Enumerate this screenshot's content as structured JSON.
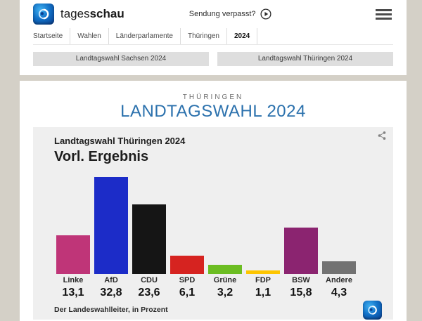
{
  "header": {
    "brand": {
      "word_regular": "tages",
      "word_bold": "schau"
    },
    "sendung_verpasst": "Sendung verpasst?",
    "breadcrumb": [
      "Startseite",
      "Wahlen",
      "Länderparlamente",
      "Thüringen",
      "2024"
    ],
    "tabs": [
      {
        "label": "Landtagswahl Sachsen 2024"
      },
      {
        "label": "Landtagswahl Thüringen 2024"
      }
    ]
  },
  "page": {
    "kicker": "THÜRINGEN",
    "title": "LANDTAGSWAHL 2024"
  },
  "chart_card": {
    "title": "Landtagswahl Thüringen 2024",
    "subtitle": "Vorl. Ergebnis",
    "source": "Der Landeswahlleiter, in Prozent"
  },
  "chart_data": {
    "type": "bar",
    "title": "Landtagswahl Thüringen 2024 — Vorl. Ergebnis",
    "categories": [
      "Linke",
      "AfD",
      "CDU",
      "SPD",
      "Grüne",
      "FDP",
      "BSW",
      "Andere"
    ],
    "values": [
      13.1,
      32.8,
      23.6,
      6.1,
      3.2,
      1.1,
      15.8,
      4.3
    ],
    "value_labels": [
      "13,1",
      "32,8",
      "23,6",
      "6,1",
      "3,2",
      "1,1",
      "15,8",
      "4,3"
    ],
    "colors": [
      "#bf3578",
      "#1c2cc8",
      "#151515",
      "#d62320",
      "#6cbd22",
      "#fdc500",
      "#8b2470",
      "#727272"
    ],
    "unit": "Prozent",
    "ylim": [
      0,
      35
    ],
    "grid": false,
    "legend": false
  },
  "theme": {
    "page_background": "#d4d0c7",
    "content_background": "#ffffff",
    "card_background": "#efefef",
    "title_blue": "#2b71ad",
    "tab_gray": "#dedede",
    "logo_blue": "#1272c8"
  },
  "icons": {
    "play": "play-circle-icon",
    "menu": "hamburger-menu-icon",
    "share": "share-icon",
    "logo": "tagesschau-globe-icon"
  }
}
